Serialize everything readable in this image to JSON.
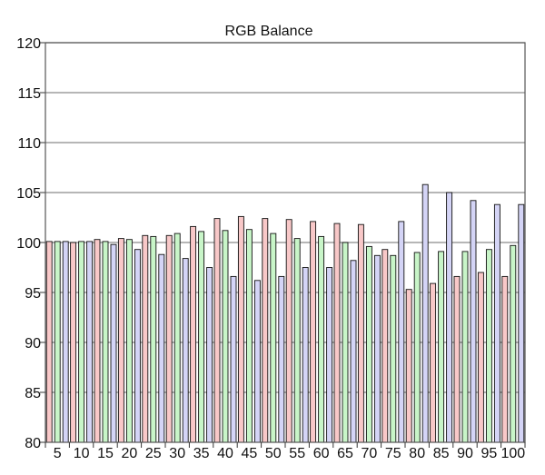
{
  "chart_data": {
    "type": "bar",
    "title": "RGB Balance",
    "xlabel": "",
    "ylabel": "",
    "ylim": [
      80,
      120
    ],
    "yticks": [
      80,
      85,
      90,
      95,
      100,
      105,
      110,
      115,
      120
    ],
    "grid": true,
    "legend": "none",
    "categories": [
      "5",
      "10",
      "15",
      "20",
      "25",
      "30",
      "35",
      "40",
      "45",
      "50",
      "55",
      "60",
      "65",
      "70",
      "75",
      "80",
      "85",
      "90",
      "95",
      "100"
    ],
    "series": [
      {
        "color": "#f8c8c8",
        "values": [
          100.1,
          100.0,
          100.3,
          100.4,
          100.7,
          100.7,
          101.6,
          102.4,
          102.6,
          102.4,
          102.3,
          102.1,
          101.9,
          101.8,
          99.3,
          95.3,
          95.9,
          96.6,
          97.0,
          96.6
        ]
      },
      {
        "color": "#c8f5c8",
        "values": [
          100.1,
          100.1,
          100.1,
          100.3,
          100.6,
          100.9,
          101.1,
          101.2,
          101.3,
          100.9,
          100.4,
          100.6,
          100.0,
          99.6,
          98.7,
          99.0,
          99.1,
          99.1,
          99.3,
          99.7
        ]
      },
      {
        "color": "#d4d4f6",
        "values": [
          100.1,
          100.1,
          99.8,
          99.3,
          98.8,
          98.4,
          97.5,
          96.6,
          96.2,
          96.6,
          97.5,
          97.5,
          98.2,
          98.7,
          102.1,
          105.8,
          105.0,
          104.2,
          103.8,
          103.8
        ]
      }
    ]
  }
}
